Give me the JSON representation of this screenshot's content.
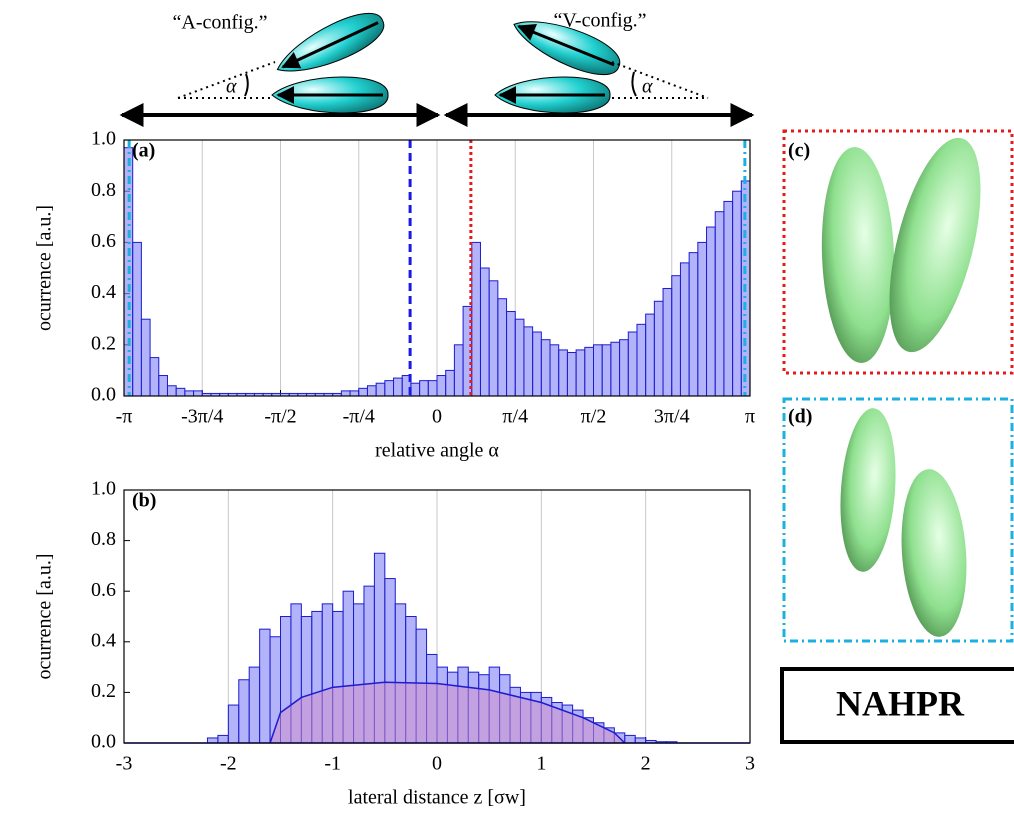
{
  "chart_data": [
    {
      "type": "histogram",
      "panel_label": "(a)",
      "xlabel": "relative angle α",
      "ylabel": "ocurrence [a.u.]",
      "bins": [
        -3.1416,
        -3.0543,
        -2.9671,
        -2.8798,
        -2.7925,
        -2.7053,
        -2.618,
        -2.5307,
        -2.4435,
        -2.3562,
        -2.2689,
        -2.1817,
        -2.0944,
        -2.0071,
        -1.9199,
        -1.8326,
        -1.7453,
        -1.6581,
        -1.5708,
        -1.4835,
        -1.3963,
        -1.309,
        -1.2217,
        -1.1345,
        -1.0472,
        -0.9599,
        -0.8727,
        -0.7854,
        -0.6981,
        -0.6109,
        -0.5236,
        -0.4363,
        -0.3491,
        -0.2618,
        -0.1745,
        -0.0873,
        0,
        0.0873,
        0.1745,
        0.2618,
        0.3491,
        0.4363,
        0.5236,
        0.6109,
        0.6981,
        0.7854,
        0.8727,
        0.9599,
        1.0472,
        1.1345,
        1.2217,
        1.309,
        1.3963,
        1.4835,
        1.5708,
        1.6581,
        1.7453,
        1.8326,
        1.9199,
        2.0071,
        2.0944,
        2.1817,
        2.2689,
        2.3562,
        2.4435,
        2.5307,
        2.618,
        2.7053,
        2.7925,
        2.8798,
        2.9671,
        3.0543,
        3.1416
      ],
      "counts": [
        0.97,
        0.6,
        0.3,
        0.15,
        0.08,
        0.04,
        0.03,
        0.02,
        0.02,
        0.01,
        0.01,
        0.01,
        0.01,
        0.01,
        0.01,
        0.01,
        0.01,
        0.01,
        0.01,
        0.01,
        0.01,
        0.01,
        0.01,
        0.01,
        0.01,
        0.02,
        0.02,
        0.03,
        0.04,
        0.05,
        0.06,
        0.07,
        0.08,
        0.05,
        0.06,
        0.06,
        0.08,
        0.1,
        0.2,
        0.35,
        0.6,
        0.5,
        0.45,
        0.38,
        0.33,
        0.3,
        0.27,
        0.25,
        0.22,
        0.2,
        0.18,
        0.17,
        0.18,
        0.19,
        0.2,
        0.2,
        0.21,
        0.22,
        0.25,
        0.28,
        0.32,
        0.37,
        0.42,
        0.47,
        0.52,
        0.56,
        0.6,
        0.66,
        0.72,
        0.76,
        0.8,
        0.84
      ],
      "color": "#8a8af7",
      "edgecolor": "#1c1cd0",
      "vlines": [
        {
          "value": -0.27,
          "color": "#1a1ae6",
          "style": "dashed"
        },
        {
          "value": 0.34,
          "color": "#e61a1a",
          "style": "dotted"
        },
        {
          "value": -3.09,
          "color": "#1ab0e0",
          "style": "dashdot"
        },
        {
          "value": 3.09,
          "color": "#1ab0e0",
          "style": "dashdot"
        }
      ],
      "xlim": [
        -3.1416,
        3.1416
      ],
      "xticks": [
        {
          "value": -3.1416,
          "label": "-π"
        },
        {
          "value": -2.3562,
          "label": "-3π/4"
        },
        {
          "value": -1.5708,
          "label": "-π/2"
        },
        {
          "value": -0.7854,
          "label": "-π/4"
        },
        0,
        {
          "value": 0.7854,
          "label": "π/4"
        },
        {
          "value": 1.5708,
          "label": "π/2"
        },
        {
          "value": 2.3562,
          "label": "3π/4"
        },
        {
          "value": 3.1416,
          "label": "π"
        }
      ],
      "ylim": [
        0,
        1
      ],
      "yticks": [
        {
          "value": 0,
          "label": "0.0"
        },
        0.2,
        0.4,
        0.6,
        0.8,
        {
          "value": 1,
          "label": "1.0"
        }
      ],
      "grid": "x"
    },
    {
      "type": "histogram",
      "panel_label": "(b)",
      "xlabel": "lateral distance z [σw]",
      "ylabel": "ocurrence [a.u.]",
      "bins": [
        -2.2,
        -2.1,
        -2.0,
        -1.9,
        -1.8,
        -1.7,
        -1.6,
        -1.5,
        -1.4,
        -1.3,
        -1.2,
        -1.1,
        -1.0,
        -0.9,
        -0.8,
        -0.7,
        -0.6,
        -0.5,
        -0.4,
        -0.3,
        -0.2,
        -0.1,
        0,
        0.1,
        0.2,
        0.3,
        0.4,
        0.5,
        0.6,
        0.7,
        0.8,
        0.9,
        1.0,
        1.1,
        1.2,
        1.3,
        1.4,
        1.5,
        1.6,
        1.7,
        1.8,
        1.9,
        2.0,
        2.1,
        2.2,
        2.3
      ],
      "counts": [
        0.02,
        0.03,
        0.15,
        0.25,
        0.3,
        0.45,
        0.42,
        0.5,
        0.55,
        0.5,
        0.52,
        0.55,
        0.52,
        0.6,
        0.55,
        0.62,
        0.75,
        0.65,
        0.55,
        0.5,
        0.45,
        0.35,
        0.3,
        0.28,
        0.3,
        0.28,
        0.27,
        0.3,
        0.27,
        0.22,
        0.2,
        0.2,
        0.18,
        0.16,
        0.15,
        0.13,
        0.1,
        0.08,
        0.06,
        0.04,
        0.03,
        0.02,
        0.01,
        0.005,
        0.005
      ],
      "color": "#8a8af7",
      "edgecolor": "#1c1cd0",
      "area": {
        "color": "#d08fc8",
        "x": [
          -3,
          -1.6,
          -1.5,
          -1.3,
          -1.0,
          -0.5,
          0,
          0.5,
          1.0,
          1.4,
          1.7,
          1.8,
          3
        ],
        "values": [
          0,
          0,
          0.12,
          0.18,
          0.22,
          0.24,
          0.235,
          0.21,
          0.16,
          0.1,
          0.04,
          0,
          0
        ]
      },
      "xlim": [
        -3,
        3
      ],
      "xticks": [
        -3,
        -2,
        -1,
        0,
        1,
        2,
        3
      ],
      "ylim": [
        0,
        1
      ],
      "yticks": [
        {
          "value": 0,
          "label": "0.0"
        },
        0.2,
        0.4,
        0.6,
        0.8,
        {
          "value": 1,
          "label": "1.0"
        }
      ],
      "grid": "x"
    }
  ],
  "diagram": {
    "a_config": "“A-config.”",
    "v_config": "“V-config.”",
    "alpha": "α"
  },
  "panels": {
    "c": "(c)",
    "d": "(d)",
    "box": "NAHPR"
  }
}
